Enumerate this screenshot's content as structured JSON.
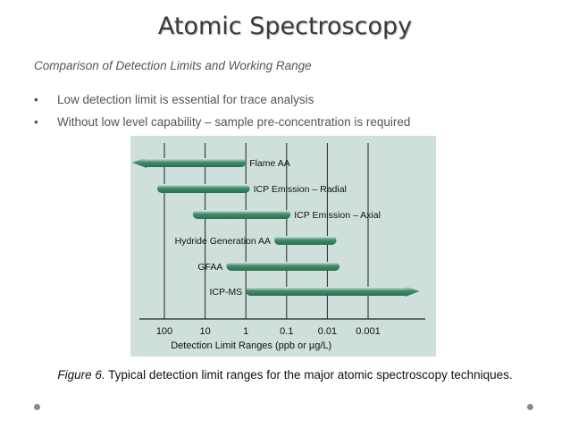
{
  "page": {
    "title": "Atomic Spectroscopy",
    "subtitle": "Comparison of Detection Limits and Working Range",
    "bullets": [
      "Low detection limit is essential for trace analysis",
      "Without low level capability – sample pre-concentration is required"
    ],
    "caption_prefix": "Figure 6.",
    "caption_text": " Typical detection limit ranges for the major atomic spectroscopy techniques."
  },
  "colors": {
    "bar": "#3f8f6c",
    "bar_light": "#e6f1ec",
    "figure_bg": "#cfe0dc",
    "axis": "#222222"
  },
  "chart_data": {
    "type": "range-bar",
    "xlabel": "Detection Limit Ranges (ppb or µg/L)",
    "ticks": [
      "100",
      "10",
      "1",
      "0.1",
      "0.01",
      "0.001"
    ],
    "series": [
      {
        "name": "Flame AA",
        "from": 1000,
        "to": 1,
        "open_start": true,
        "open_end": false
      },
      {
        "name": "ICP Emission – Radial",
        "from": 150,
        "to": 0.8,
        "open_start": false,
        "open_end": false
      },
      {
        "name": "ICP Emission – Axial",
        "from": 20,
        "to": 0.08,
        "open_start": false,
        "open_end": false
      },
      {
        "name": "Hydride Generation AA",
        "from": 0.2,
        "to": 0.006,
        "open_start": false,
        "open_end": false
      },
      {
        "name": "GFAA",
        "from": 3,
        "to": 0.005,
        "open_start": false,
        "open_end": false
      },
      {
        "name": "ICP-MS",
        "from": 1,
        "to": 0.0001,
        "open_start": false,
        "open_end": true
      }
    ]
  }
}
